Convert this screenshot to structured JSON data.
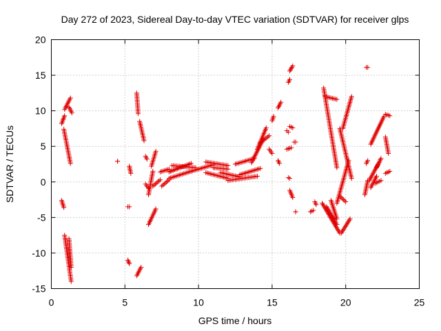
{
  "chart_data": {
    "type": "scatter",
    "title": "Day 272 of 2023, Sidereal Day-to-day VTEC variation (SDTVAR) for receiver glps",
    "xlabel": "GPS time / hours",
    "ylabel": "SDTVAR / TECUs",
    "xlim": [
      0,
      25
    ],
    "ylim": [
      -15,
      20
    ],
    "xticks": [
      "0",
      "5",
      "10",
      "15",
      "20",
      "25"
    ],
    "yticks": [
      "-15",
      "-10",
      "-5",
      "0",
      "5",
      "10",
      "15",
      "20"
    ],
    "grid": true,
    "marker": "+",
    "color": "#e00000",
    "segments": [
      {
        "x": [
          0.7,
          0.9
        ],
        "y": [
          8.2,
          9.3
        ]
      },
      {
        "x": [
          0.85,
          1.3
        ],
        "y": [
          7.4,
          2.6
        ]
      },
      {
        "x": [
          0.9,
          1.3
        ],
        "y": [
          10.2,
          11.8
        ]
      },
      {
        "x": [
          1.2,
          1.4
        ],
        "y": [
          10.5,
          9.7
        ]
      },
      {
        "x": [
          0.7,
          0.85
        ],
        "y": [
          -2.6,
          -3.6
        ]
      },
      {
        "x": [
          0.9,
          1.35
        ],
        "y": [
          -7.5,
          -14.0
        ]
      },
      {
        "x": [
          1.2,
          1.35
        ],
        "y": [
          -8.0,
          -12.0
        ]
      },
      {
        "x": [
          4.5,
          4.5
        ],
        "y": [
          2.9,
          2.9
        ]
      },
      {
        "x": [
          5.2,
          5.3
        ],
        "y": [
          -3.5,
          -3.5
        ]
      },
      {
        "x": [
          5.3,
          5.4
        ],
        "y": [
          2.2,
          1.2
        ]
      },
      {
        "x": [
          5.2,
          5.3
        ],
        "y": [
          -11.0,
          -11.5
        ]
      },
      {
        "x": [
          5.8,
          6.1
        ],
        "y": [
          -13.2,
          -12.0
        ]
      },
      {
        "x": [
          5.8,
          5.9
        ],
        "y": [
          12.5,
          9.6
        ]
      },
      {
        "x": [
          6.0,
          6.3
        ],
        "y": [
          8.5,
          5.8
        ]
      },
      {
        "x": [
          6.4,
          6.5
        ],
        "y": [
          3.6,
          3.2
        ]
      },
      {
        "x": [
          6.4,
          6.6
        ],
        "y": [
          -0.3,
          -0.9
        ]
      },
      {
        "x": [
          6.6,
          7.1
        ],
        "y": [
          -6.0,
          -3.8
        ]
      },
      {
        "x": [
          6.6,
          6.9
        ],
        "y": [
          -1.8,
          1.5
        ]
      },
      {
        "x": [
          6.9,
          7.4
        ],
        "y": [
          -0.6,
          0.3
        ]
      },
      {
        "x": [
          6.8,
          7.1
        ],
        "y": [
          2.2,
          4.3
        ]
      },
      {
        "x": [
          7.4,
          8.0
        ],
        "y": [
          1.4,
          1.8
        ]
      },
      {
        "x": [
          7.5,
          8.0
        ],
        "y": [
          -0.6,
          0.3
        ]
      },
      {
        "x": [
          8.0,
          9.5
        ],
        "y": [
          0.5,
          1.5
        ]
      },
      {
        "x": [
          8.0,
          9.5
        ],
        "y": [
          1.4,
          2.6
        ]
      },
      {
        "x": [
          8.2,
          9.8
        ],
        "y": [
          2.3,
          2.0
        ]
      },
      {
        "x": [
          9.5,
          11.0
        ],
        "y": [
          1.5,
          2.4
        ]
      },
      {
        "x": [
          10.5,
          12.0
        ],
        "y": [
          2.8,
          2.3
        ]
      },
      {
        "x": [
          10.5,
          12.0
        ],
        "y": [
          1.3,
          0.5
        ]
      },
      {
        "x": [
          11.0,
          12.0
        ],
        "y": [
          2.0,
          1.8
        ]
      },
      {
        "x": [
          11.5,
          12.8
        ],
        "y": [
          1.3,
          0.7
        ]
      },
      {
        "x": [
          12.0,
          14.0
        ],
        "y": [
          0.2,
          0.8
        ]
      },
      {
        "x": [
          12.5,
          13.8
        ],
        "y": [
          2.5,
          3.3
        ]
      },
      {
        "x": [
          12.8,
          14.2
        ],
        "y": [
          1.0,
          1.9
        ]
      },
      {
        "x": [
          13.6,
          14.4
        ],
        "y": [
          2.7,
          6.0
        ]
      },
      {
        "x": [
          14.0,
          14.6
        ],
        "y": [
          4.6,
          7.6
        ]
      },
      {
        "x": [
          14.2,
          14.8
        ],
        "y": [
          5.5,
          6.5
        ]
      },
      {
        "x": [
          14.8,
          15.0
        ],
        "y": [
          4.6,
          4.0
        ]
      },
      {
        "x": [
          15.0,
          15.1
        ],
        "y": [
          8.6,
          9.2
        ]
      },
      {
        "x": [
          15.4,
          15.6
        ],
        "y": [
          10.4,
          11.2
        ]
      },
      {
        "x": [
          15.4,
          15.5
        ],
        "y": [
          3.0,
          2.6
        ]
      },
      {
        "x": [
          16.0,
          16.1
        ],
        "y": [
          7.2,
          7.0
        ]
      },
      {
        "x": [
          16.1,
          16.2
        ],
        "y": [
          14.0,
          14.4
        ]
      },
      {
        "x": [
          16.2,
          16.4
        ],
        "y": [
          15.6,
          16.3
        ]
      },
      {
        "x": [
          16.2,
          16.4
        ],
        "y": [
          7.8,
          7.6
        ]
      },
      {
        "x": [
          16.0,
          16.3
        ],
        "y": [
          4.6,
          4.8
        ]
      },
      {
        "x": [
          16.2,
          16.4
        ],
        "y": [
          -1.2,
          -2.2
        ]
      },
      {
        "x": [
          16.1,
          16.2
        ],
        "y": [
          0.6,
          0.5
        ]
      },
      {
        "x": [
          16.5,
          16.6
        ],
        "y": [
          5.6,
          5.6
        ]
      },
      {
        "x": [
          16.6,
          16.6
        ],
        "y": [
          -4.2,
          -4.2
        ]
      },
      {
        "x": [
          17.6,
          17.8
        ],
        "y": [
          -4.2,
          -4.0
        ]
      },
      {
        "x": [
          17.9,
          18.0
        ],
        "y": [
          -2.8,
          -3.2
        ]
      },
      {
        "x": [
          18.5,
          19.4
        ],
        "y": [
          13.2,
          2.0
        ]
      },
      {
        "x": [
          18.6,
          19.4
        ],
        "y": [
          12.0,
          11.6
        ]
      },
      {
        "x": [
          18.4,
          19.6
        ],
        "y": [
          -3.0,
          -7.2
        ]
      },
      {
        "x": [
          18.7,
          19.4
        ],
        "y": [
          -3.5,
          -6.0
        ]
      },
      {
        "x": [
          19.0,
          19.4
        ],
        "y": [
          -2.6,
          -5.2
        ]
      },
      {
        "x": [
          19.4,
          20.2
        ],
        "y": [
          -3.0,
          3.0
        ]
      },
      {
        "x": [
          19.6,
          20.4
        ],
        "y": [
          7.5,
          0.5
        ]
      },
      {
        "x": [
          19.7,
          20.3
        ],
        "y": [
          -7.2,
          -5.2
        ]
      },
      {
        "x": [
          19.6,
          20.0
        ],
        "y": [
          -2.0,
          -2.8
        ]
      },
      {
        "x": [
          19.8,
          20.4
        ],
        "y": [
          7.5,
          12.0
        ]
      },
      {
        "x": [
          21.3,
          21.5
        ],
        "y": [
          -1.8,
          0.2
        ]
      },
      {
        "x": [
          21.4,
          21.5
        ],
        "y": [
          16.1,
          16.1
        ]
      },
      {
        "x": [
          21.4,
          21.5
        ],
        "y": [
          2.6,
          3.0
        ]
      },
      {
        "x": [
          21.7,
          22.6
        ],
        "y": [
          5.3,
          9.2
        ]
      },
      {
        "x": [
          21.6,
          22.2
        ],
        "y": [
          0.2,
          2.5
        ]
      },
      {
        "x": [
          21.7,
          22.1
        ],
        "y": [
          -0.8,
          0.8
        ]
      },
      {
        "x": [
          22.0,
          22.4
        ],
        "y": [
          -0.2,
          0.2
        ]
      },
      {
        "x": [
          22.1,
          22.4
        ],
        "y": [
          2.0,
          3.3
        ]
      },
      {
        "x": [
          22.7,
          23.0
        ],
        "y": [
          9.5,
          9.3
        ]
      },
      {
        "x": [
          22.7,
          22.9
        ],
        "y": [
          6.3,
          4.0
        ]
      },
      {
        "x": [
          22.7,
          23.0
        ],
        "y": [
          1.2,
          1.5
        ]
      }
    ]
  }
}
